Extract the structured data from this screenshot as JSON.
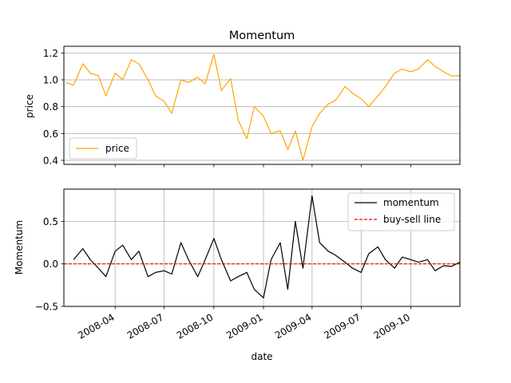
{
  "chart_data": [
    {
      "type": "line",
      "title": "Momentum",
      "xlabel": "",
      "ylabel": "price",
      "ylim": [
        0.37,
        1.25
      ],
      "yticks": [
        0.4,
        0.6,
        0.8,
        1.0,
        1.2
      ],
      "ytick_labels": [
        "0.4",
        "0.6",
        "0.8",
        "1.0",
        "1.2"
      ],
      "grid": "y",
      "legend": {
        "placement": "lower-left",
        "entries": [
          {
            "label": "price",
            "color": "#FFA500",
            "style": "solid"
          }
        ]
      },
      "series": [
        {
          "name": "price",
          "color": "#FFA500",
          "x": [
            "2008-01-01",
            "2008-01-15",
            "2008-02-01",
            "2008-02-15",
            "2008-03-01",
            "2008-03-15",
            "2008-04-01",
            "2008-04-15",
            "2008-05-01",
            "2008-05-15",
            "2008-06-01",
            "2008-06-15",
            "2008-07-01",
            "2008-07-15",
            "2008-08-01",
            "2008-08-15",
            "2008-09-01",
            "2008-09-15",
            "2008-10-01",
            "2008-10-15",
            "2008-11-01",
            "2008-11-15",
            "2008-12-01",
            "2008-12-15",
            "2009-01-01",
            "2009-01-15",
            "2009-02-01",
            "2009-02-15",
            "2009-03-01",
            "2009-03-15",
            "2009-04-01",
            "2009-04-15",
            "2009-05-01",
            "2009-05-15",
            "2009-06-01",
            "2009-06-15",
            "2009-07-01",
            "2009-07-15",
            "2009-08-01",
            "2009-08-15",
            "2009-09-01",
            "2009-09-15",
            "2009-10-01",
            "2009-10-15",
            "2009-11-01",
            "2009-11-15",
            "2009-12-01",
            "2009-12-15",
            "2009-12-31"
          ],
          "y": [
            0.98,
            0.96,
            1.12,
            1.05,
            1.03,
            0.88,
            1.05,
            1.0,
            1.15,
            1.12,
            1.0,
            0.88,
            0.84,
            0.75,
            1.0,
            0.98,
            1.02,
            0.97,
            1.19,
            0.92,
            1.01,
            0.7,
            0.56,
            0.8,
            0.73,
            0.6,
            0.62,
            0.48,
            0.62,
            0.4,
            0.65,
            0.75,
            0.82,
            0.85,
            0.95,
            0.9,
            0.86,
            0.8,
            0.88,
            0.95,
            1.05,
            1.08,
            1.06,
            1.08,
            1.15,
            1.1,
            1.06,
            1.03,
            1.03
          ]
        }
      ]
    },
    {
      "type": "line",
      "title": "",
      "xlabel": "date",
      "ylabel": "Momentum",
      "ylim": [
        -0.5,
        0.88
      ],
      "yticks": [
        -0.5,
        0.0,
        0.5
      ],
      "ytick_labels": [
        "−0.5",
        "0.0",
        "0.5"
      ],
      "xlim": [
        "2007-12-28",
        "2009-12-31"
      ],
      "xticks": [
        "2008-04-01",
        "2008-07-01",
        "2008-10-01",
        "2009-01-01",
        "2009-04-01",
        "2009-07-01",
        "2009-10-01"
      ],
      "xtick_labels": [
        "2008-04",
        "2008-07",
        "2008-10",
        "2009-01",
        "2009-04",
        "2009-07",
        "2009-10"
      ],
      "grid": "both",
      "legend": {
        "placement": "upper-right",
        "entries": [
          {
            "label": "momentum",
            "color": "#000000",
            "style": "solid"
          },
          {
            "label": "buy-sell line",
            "color": "#FF0000",
            "style": "dashed"
          }
        ]
      },
      "series": [
        {
          "name": "momentum",
          "color": "#000000",
          "x": [
            "2008-01-15",
            "2008-02-01",
            "2008-02-15",
            "2008-03-01",
            "2008-03-15",
            "2008-04-01",
            "2008-04-15",
            "2008-05-01",
            "2008-05-15",
            "2008-06-01",
            "2008-06-15",
            "2008-07-01",
            "2008-07-15",
            "2008-08-01",
            "2008-08-15",
            "2008-09-01",
            "2008-09-15",
            "2008-10-01",
            "2008-10-15",
            "2008-11-01",
            "2008-11-15",
            "2008-12-01",
            "2008-12-15",
            "2009-01-01",
            "2009-01-15",
            "2009-02-01",
            "2009-02-15",
            "2009-03-01",
            "2009-03-15",
            "2009-04-01",
            "2009-04-15",
            "2009-05-01",
            "2009-05-15",
            "2009-06-01",
            "2009-06-15",
            "2009-07-01",
            "2009-07-15",
            "2009-08-01",
            "2009-08-15",
            "2009-09-01",
            "2009-09-15",
            "2009-10-01",
            "2009-10-15",
            "2009-11-01",
            "2009-11-15",
            "2009-12-01",
            "2009-12-15",
            "2009-12-31"
          ],
          "y": [
            0.05,
            0.18,
            0.05,
            -0.05,
            -0.15,
            0.15,
            0.22,
            0.05,
            0.15,
            -0.15,
            -0.1,
            -0.08,
            -0.12,
            0.25,
            0.05,
            -0.15,
            0.05,
            0.3,
            0.05,
            -0.2,
            -0.15,
            -0.1,
            -0.3,
            -0.4,
            0.05,
            0.25,
            -0.3,
            0.5,
            -0.05,
            0.8,
            0.25,
            0.15,
            0.1,
            0.02,
            -0.05,
            -0.1,
            0.12,
            0.2,
            0.05,
            -0.05,
            0.08,
            0.05,
            0.02,
            0.05,
            -0.08,
            -0.02,
            -0.03,
            0.02
          ]
        },
        {
          "name": "buy-sell line",
          "color": "#FF0000",
          "x": [
            "2007-12-28",
            "2009-12-31"
          ],
          "y": [
            0.0,
            0.0
          ]
        }
      ]
    }
  ]
}
